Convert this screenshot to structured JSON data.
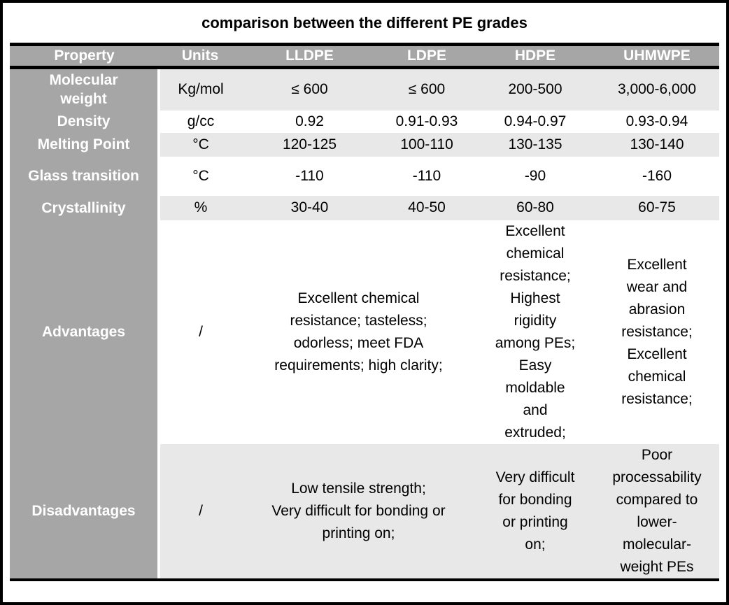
{
  "chart_data": {
    "type": "table",
    "title": "comparison between the different PE grades",
    "columns": [
      "Property",
      "Units",
      "LLDPE",
      "LDPE",
      "HDPE",
      "UHMWPE"
    ],
    "rows": [
      {
        "property": "Molecular\nweight",
        "units": "Kg/mol",
        "lldpe": "≤ 600",
        "ldpe": "≤ 600",
        "hdpe": "200-500",
        "uhmwpe": "3,000-6,000"
      },
      {
        "property": "Density",
        "units": "g/cc",
        "lldpe": "0.92",
        "ldpe": "0.91-0.93",
        "hdpe": "0.94-0.97",
        "uhmwpe": "0.93-0.94"
      },
      {
        "property": "Melting Point",
        "units": "°C",
        "lldpe": "120-125",
        "ldpe": "100-110",
        "hdpe": "130-135",
        "uhmwpe": "130-140"
      },
      {
        "property": "Glass transition",
        "units": "°C",
        "lldpe": "-110",
        "ldpe": "-110",
        "hdpe": "-90",
        "uhmwpe": "-160"
      },
      {
        "property": "Crystallinity",
        "units": "%",
        "lldpe": "30-40",
        "ldpe": "40-50",
        "hdpe": "60-80",
        "uhmwpe": "60-75"
      },
      {
        "property": "Advantages",
        "units": "/",
        "lldpe_ldpe": "Excellent chemical\nresistance; tasteless;\nodorless; meet FDA\nrequirements; high clarity;",
        "hdpe": "Excellent\nchemical\nresistance;\nHighest\nrigidity\namong PEs;\nEasy\nmoldable\nand\nextruded;",
        "uhmwpe": "Excellent\nwear and\nabrasion\nresistance;\nExcellent\nchemical\nresistance;"
      },
      {
        "property": "Disadvantages",
        "units": "/",
        "lldpe_ldpe": "Low tensile strength;\nVery difficult for bonding or\nprinting on;",
        "hdpe": "Very difficult\nfor bonding\nor printing\non;",
        "uhmwpe": "Poor\nprocessability\ncompared to\nlower-\nmolecular-\nweight PEs"
      }
    ],
    "layout": {
      "legend": "none",
      "grid": "banded-rows"
    }
  },
  "colors": {
    "header_gray": "#a6a6a6",
    "property_column_gray": "#a6a6a6",
    "band_light_gray": "#e8e8e8",
    "border_black": "#000000",
    "header_text": "#ffffff",
    "data_text": "#000000"
  }
}
